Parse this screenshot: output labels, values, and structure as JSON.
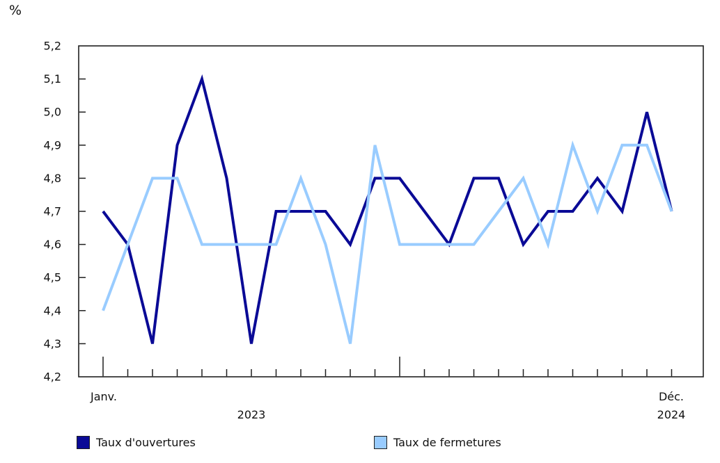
{
  "unit_label": "%",
  "chart_data": {
    "type": "line",
    "title": "",
    "xlabel": "",
    "ylabel": "%",
    "grid": false,
    "legend_position": "bottom",
    "x_axis": {
      "months_count": 24,
      "first_tick_label": "Janv.",
      "first_year_label": "2023",
      "last_tick_label": "Déc.",
      "last_year_label": "2024",
      "major_tick_indices": [
        0,
        12
      ]
    },
    "y_axis": {
      "min": 4.2,
      "max": 5.2,
      "step": 0.1,
      "tick_labels": [
        "5,2",
        "5,1",
        "5,0",
        "4,9",
        "4,8",
        "4,7",
        "4,6",
        "4,5",
        "4,4",
        "4,3",
        "4,2"
      ]
    },
    "series": [
      {
        "name": "Taux d'ouvertures",
        "color": "#0a0a96",
        "values": [
          4.7,
          4.6,
          4.3,
          4.9,
          5.1,
          4.8,
          4.3,
          4.7,
          4.7,
          4.7,
          4.6,
          4.8,
          4.8,
          4.7,
          4.6,
          4.8,
          4.8,
          4.6,
          4.7,
          4.7,
          4.8,
          4.7,
          5.0,
          4.7
        ]
      },
      {
        "name": "Taux de fermetures",
        "color": "#99ccff",
        "values": [
          4.4,
          4.6,
          4.8,
          4.8,
          4.6,
          4.6,
          4.6,
          4.6,
          4.8,
          4.6,
          4.3,
          4.9,
          4.6,
          4.6,
          4.6,
          4.6,
          4.7,
          4.8,
          4.6,
          4.9,
          4.7,
          4.9,
          4.9,
          4.7
        ]
      }
    ]
  }
}
